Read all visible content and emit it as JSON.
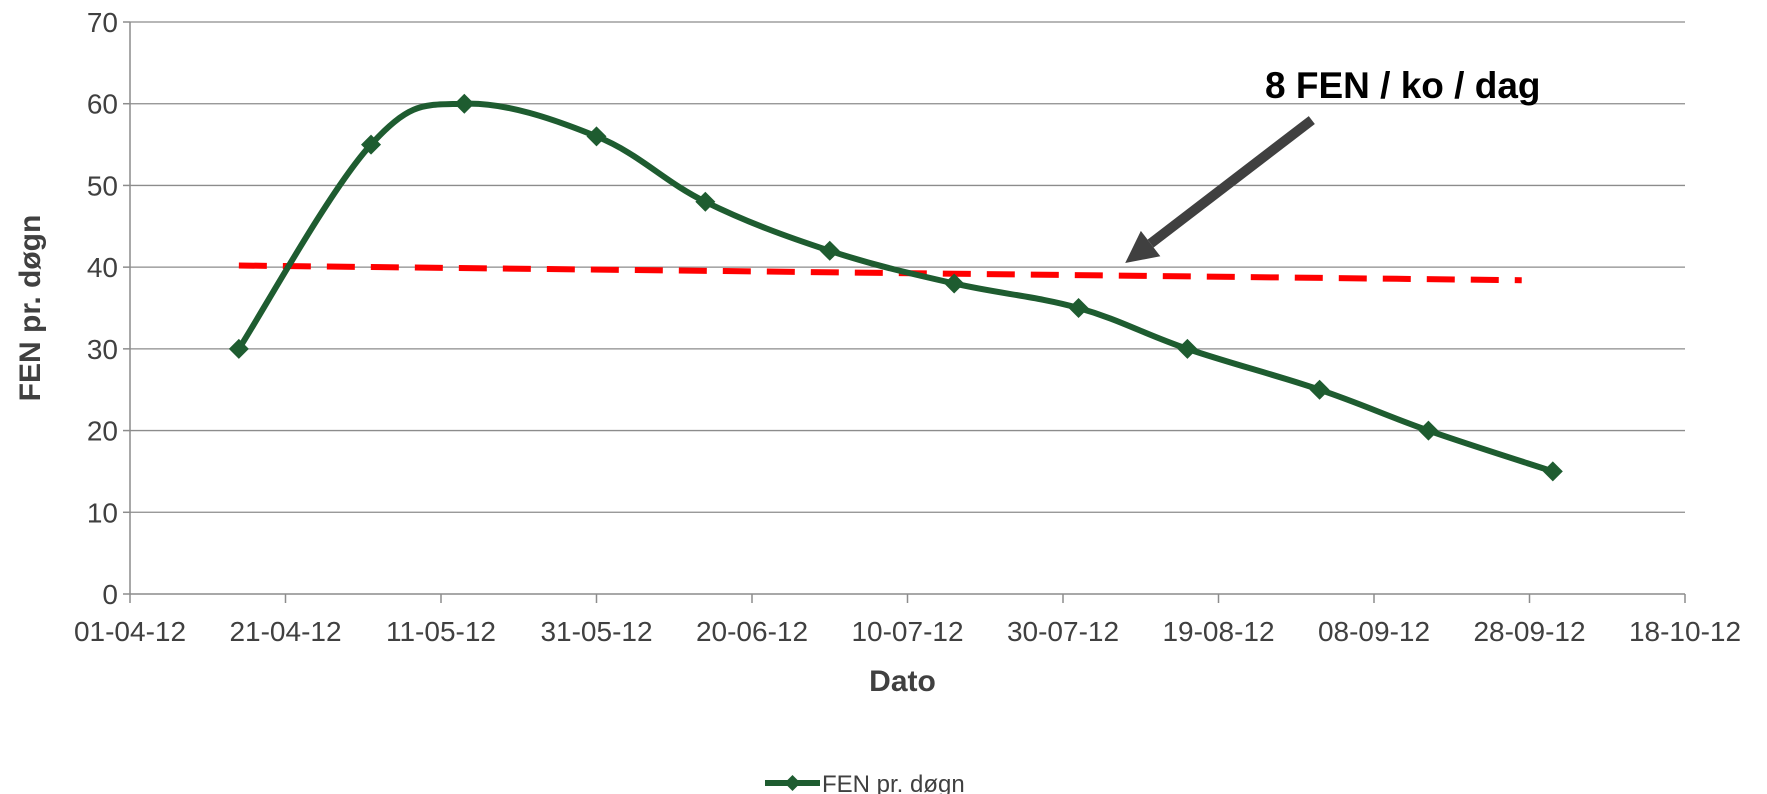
{
  "chart_data": {
    "type": "line",
    "title": "",
    "xlabel": "Dato",
    "ylabel": "FEN pr. døgn",
    "xlim": [
      "2012-04-01",
      "2012-10-18"
    ],
    "ylim": [
      0,
      70
    ],
    "y_ticks": [
      0,
      10,
      20,
      30,
      40,
      50,
      60,
      70
    ],
    "x_ticks": [
      "2012-04-01",
      "2012-04-21",
      "2012-05-11",
      "2012-05-31",
      "2012-06-20",
      "2012-07-10",
      "2012-07-30",
      "2012-08-19",
      "2012-09-08",
      "2012-09-28",
      "2012-10-18"
    ],
    "x_tick_labels": [
      "01-04-12",
      "21-04-12",
      "11-05-12",
      "31-05-12",
      "20-06-12",
      "10-07-12",
      "30-07-12",
      "19-08-12",
      "08-09-12",
      "28-09-12",
      "18-10-12"
    ],
    "grid": "horizontal",
    "legend_position": "bottom-center",
    "series": [
      {
        "name": "FEN pr. døgn",
        "color": "#1e5c30",
        "marker": "diamond",
        "smooth": true,
        "x": [
          "2012-04-15",
          "2012-05-02",
          "2012-05-14",
          "2012-05-31",
          "2012-06-14",
          "2012-06-30",
          "2012-07-16",
          "2012-08-01",
          "2012-08-15",
          "2012-09-01",
          "2012-09-15",
          "2012-10-01"
        ],
        "y": [
          30,
          55,
          60,
          56,
          48,
          42,
          38,
          35,
          30,
          25,
          20,
          15
        ]
      }
    ],
    "reference_line": {
      "color": "#ff0000",
      "style": "dashed",
      "x": [
        "2012-04-15",
        "2012-09-27"
      ],
      "y": [
        40.2,
        38.4
      ]
    },
    "annotation": {
      "text": "8 FEN / ko / dag",
      "arrow_color": "#404040",
      "arrow_from": {
        "x": "2012-08-31",
        "y": 58
      },
      "arrow_to": {
        "x": "2012-08-07",
        "y": 40.5
      }
    }
  }
}
